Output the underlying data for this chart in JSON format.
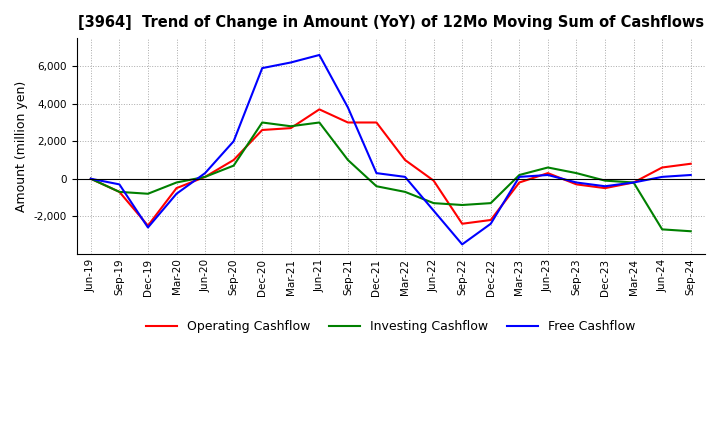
{
  "title": "[3964]  Trend of Change in Amount (YoY) of 12Mo Moving Sum of Cashflows",
  "ylabel": "Amount (million yen)",
  "background_color": "#ffffff",
  "grid_color": "#aaaaaa",
  "x_labels": [
    "Jun-19",
    "Sep-19",
    "Dec-19",
    "Mar-20",
    "Jun-20",
    "Sep-20",
    "Dec-20",
    "Mar-21",
    "Jun-21",
    "Sep-21",
    "Dec-21",
    "Mar-22",
    "Jun-22",
    "Sep-22",
    "Dec-22",
    "Mar-23",
    "Jun-23",
    "Sep-23",
    "Dec-23",
    "Mar-24",
    "Jun-24",
    "Sep-24"
  ],
  "operating": [
    0,
    -700,
    -2500,
    -500,
    100,
    1000,
    2600,
    2700,
    3700,
    3000,
    3000,
    1000,
    -100,
    -2400,
    -2200,
    -200,
    300,
    -300,
    -500,
    -200,
    600,
    800
  ],
  "investing": [
    0,
    -700,
    -800,
    -200,
    100,
    700,
    3000,
    2800,
    3000,
    1000,
    -400,
    -700,
    -1300,
    -1400,
    -1300,
    200,
    600,
    300,
    -100,
    -200,
    -2700,
    -2800
  ],
  "free": [
    0,
    -300,
    -2600,
    -800,
    300,
    2000,
    5900,
    6200,
    6600,
    3800,
    300,
    100,
    -1700,
    -3500,
    -2400,
    100,
    200,
    -200,
    -400,
    -200,
    100,
    200
  ],
  "ylim": [
    -4000,
    7500
  ],
  "yticks": [
    -2000,
    0,
    2000,
    4000,
    6000
  ],
  "operating_color": "#ff0000",
  "investing_color": "#008000",
  "free_color": "#0000ff",
  "line_width": 1.5
}
